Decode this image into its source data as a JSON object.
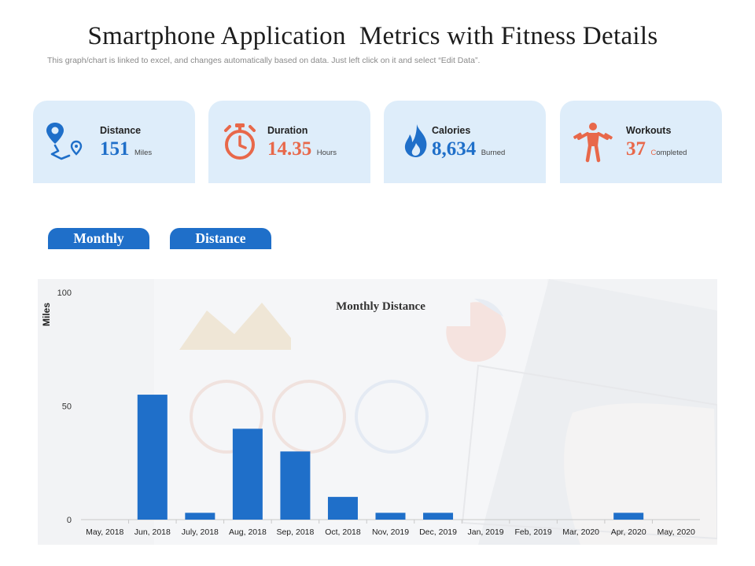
{
  "header": {
    "title": "Smartphone Application  Metrics with Fitness Details",
    "subtitle": "This graph/chart is linked to excel,  and changes automatically based on data. Just left click on it and select “Edit Data”."
  },
  "stats": [
    {
      "label": "Distance",
      "value": "151",
      "unit": "Miles",
      "icon": "route-pin-icon",
      "color": "#1f6fc9"
    },
    {
      "label": "Duration",
      "value": "14.35",
      "unit": "Hours",
      "icon": "stopwatch-icon",
      "color": "#e8684a"
    },
    {
      "label": "Calories",
      "value": "8,634",
      "unit": "Burned",
      "icon": "flame-icon",
      "color": "#1f6fc9"
    },
    {
      "label": "Workouts",
      "value": "37",
      "unit_first": "C",
      "unit_rest": "ompleted",
      "icon": "weightlifter-icon",
      "color": "#e8684a"
    }
  ],
  "tabs": {
    "monthly": "Monthly",
    "distance": "Distance"
  },
  "colors": {
    "accent": "#1f6fc9",
    "secondary": "#e8684a",
    "card_bg": "#deedfa"
  },
  "chart_data": {
    "type": "bar",
    "title": "Monthly Distance",
    "ylabel": "Miles",
    "xlabel": "",
    "ylim": [
      0,
      100
    ],
    "yticks": [
      0,
      50,
      100
    ],
    "grid": false,
    "categories": [
      "May, 2018",
      "Jun, 2018",
      "July, 2018",
      "Aug, 2018",
      "Sep, 2018",
      "Oct, 2018",
      "Nov, 2019",
      "Dec, 2019",
      "Jan, 2019",
      "Feb, 2019",
      "Mar, 2020",
      "Apr, 2020",
      "May, 2020"
    ],
    "values": [
      0,
      55,
      3,
      40,
      30,
      10,
      3,
      3,
      0,
      0,
      0,
      3,
      0
    ],
    "bar_color": "#1f6fc9"
  }
}
